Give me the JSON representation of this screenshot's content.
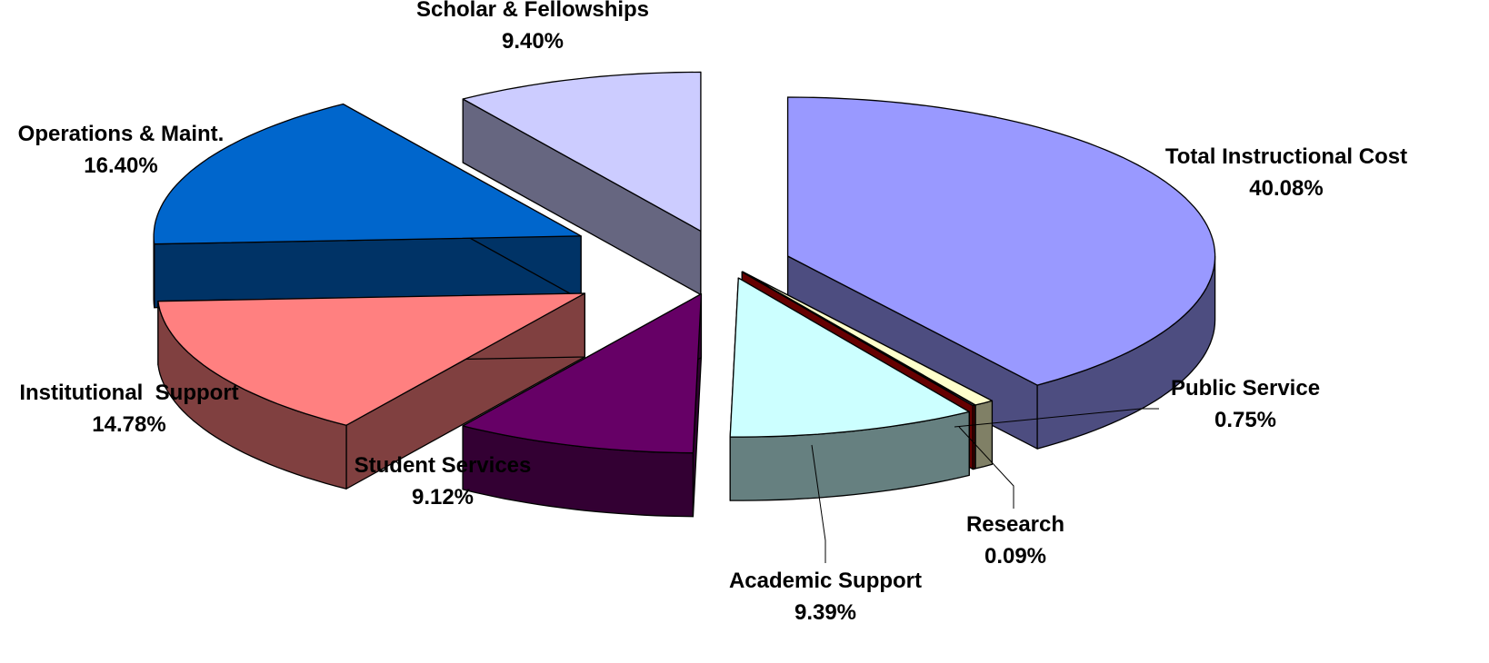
{
  "chart_data": {
    "type": "pie",
    "style": "3d-exploded",
    "legend": "none",
    "slices": [
      {
        "label": "Total Instructional Cost",
        "value": 40.08,
        "value_label": "40.08%",
        "top_color": "#9999FF",
        "side_color": "#4D4D80"
      },
      {
        "label": "Public Service",
        "value": 0.75,
        "value_label": "0.75%",
        "top_color": "#FFFFCC",
        "side_color": "#808066"
      },
      {
        "label": "Research",
        "value": 0.09,
        "value_label": "0.09%",
        "top_color": "#9999CC",
        "side_color": "#660000"
      },
      {
        "label": "Academic Support",
        "value": 9.39,
        "value_label": "9.39%",
        "top_color": "#CCFFFF",
        "side_color": "#668080"
      },
      {
        "label": "Student Services",
        "value": 9.12,
        "value_label": "9.12%",
        "top_color": "#660066",
        "side_color": "#330033"
      },
      {
        "label": "Institutional  Support",
        "value": 14.78,
        "value_label": "14.78%",
        "top_color": "#FF8080",
        "side_color": "#804040"
      },
      {
        "label": "Operations & Maint.",
        "value": 16.4,
        "value_label": "16.40%",
        "top_color": "#0066CC",
        "side_color": "#003366"
      },
      {
        "label": "Scholar & Fellowships",
        "value": 9.4,
        "value_label": "9.40%",
        "top_color": "#CCCCFF",
        "side_color": "#666680"
      }
    ]
  }
}
